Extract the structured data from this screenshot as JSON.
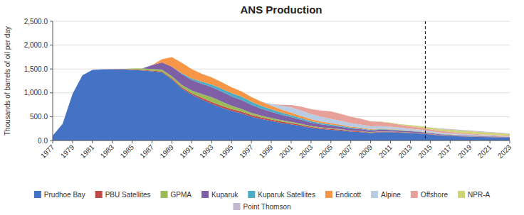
{
  "chart_data": {
    "type": "area",
    "stacked": true,
    "title": "ANS Production",
    "y_label": "Thousands of barrels of oil per day",
    "x": [
      1977,
      1978,
      1979,
      1980,
      1981,
      1982,
      1983,
      1984,
      1985,
      1986,
      1987,
      1988,
      1989,
      1990,
      1991,
      1992,
      1993,
      1994,
      1995,
      1996,
      1997,
      1998,
      1999,
      2000,
      2001,
      2002,
      2003,
      2004,
      2005,
      2006,
      2007,
      2008,
      2009,
      2010,
      2011,
      2012,
      2013,
      2014,
      2015,
      2016,
      2017,
      2018,
      2019,
      2020,
      2021,
      2022,
      2023
    ],
    "xlim": [
      1977,
      2023
    ],
    "xticks": [
      1977,
      1979,
      1981,
      1983,
      1985,
      1987,
      1989,
      1991,
      1993,
      1995,
      1997,
      1999,
      2001,
      2003,
      2005,
      2007,
      2009,
      2011,
      2013,
      2015,
      2017,
      2019,
      2021,
      2023
    ],
    "ylim": [
      0,
      2500
    ],
    "yticks": [
      {
        "value": 0,
        "label": "0.0"
      },
      {
        "value": 500,
        "label": "500.0"
      },
      {
        "value": 1000,
        "label": "1,000.0"
      },
      {
        "value": 1500,
        "label": "1,500.0"
      },
      {
        "value": 2000,
        "label": "2,000.0"
      },
      {
        "value": 2500,
        "label": "2,500.0"
      }
    ],
    "grid": true,
    "legend": "bottom",
    "reference_lines": [
      {
        "x": 2014.5,
        "line_style": "dashed"
      }
    ],
    "series": [
      {
        "name": "Prudhoe Bay",
        "color": "#4472C4",
        "values": [
          100,
          350,
          980,
          1370,
          1480,
          1490,
          1490,
          1490,
          1480,
          1470,
          1450,
          1430,
          1280,
          1090,
          960,
          860,
          770,
          690,
          620,
          570,
          500,
          450,
          410,
          370,
          340,
          305,
          265,
          240,
          225,
          210,
          185,
          175,
          155,
          175,
          175,
          165,
          155,
          145,
          125,
          105,
          95,
          85,
          80,
          75,
          70,
          65,
          62
        ]
      },
      {
        "name": "PBU Satellites",
        "color": "#BE4B48",
        "values": [
          0,
          0,
          0,
          0,
          0,
          0,
          5,
          8,
          10,
          12,
          15,
          18,
          22,
          26,
          30,
          35,
          38,
          40,
          40,
          38,
          36,
          34,
          30,
          28,
          26,
          24,
          22,
          20,
          18,
          17,
          15,
          14,
          13,
          12,
          11,
          10,
          9,
          8,
          8,
          7,
          7,
          6,
          6,
          5,
          5,
          5,
          4
        ]
      },
      {
        "name": "GPMA",
        "color": "#9BBB59",
        "values": [
          0,
          0,
          0,
          0,
          0,
          0,
          0,
          0,
          20,
          30,
          35,
          40,
          45,
          48,
          60,
          80,
          100,
          90,
          70,
          55,
          45,
          38,
          32,
          28,
          24,
          20,
          18,
          15,
          13,
          11,
          9,
          8,
          7,
          6,
          5,
          4,
          4,
          3,
          3,
          3,
          2,
          2,
          2,
          2,
          2,
          1,
          1
        ]
      },
      {
        "name": "Kuparuk",
        "color": "#7F5FA6",
        "values": [
          0,
          0,
          0,
          0,
          0,
          0,
          0,
          0,
          0,
          0,
          80,
          150,
          200,
          230,
          220,
          215,
          210,
          205,
          195,
          185,
          165,
          145,
          130,
          115,
          100,
          85,
          72,
          64,
          57,
          50,
          44,
          40,
          35,
          33,
          30,
          27,
          24,
          22,
          19,
          17,
          15,
          14,
          13,
          11,
          10,
          9,
          8
        ]
      },
      {
        "name": "Kuparuk Satellites",
        "color": "#4BACC6",
        "values": [
          0,
          0,
          0,
          0,
          0,
          0,
          0,
          0,
          0,
          0,
          0,
          0,
          0,
          15,
          30,
          45,
          55,
          62,
          68,
          70,
          65,
          58,
          52,
          46,
          40,
          35,
          30,
          26,
          23,
          20,
          17,
          15,
          13,
          11,
          10,
          9,
          8,
          7,
          6,
          5,
          5,
          4,
          4,
          3,
          3,
          3,
          2
        ]
      },
      {
        "name": "Endicott",
        "color": "#F79646",
        "values": [
          0,
          0,
          0,
          0,
          0,
          0,
          0,
          0,
          0,
          0,
          0,
          65,
          200,
          220,
          195,
          165,
          150,
          138,
          124,
          112,
          100,
          88,
          76,
          64,
          55,
          46,
          38,
          32,
          28,
          24,
          20,
          18,
          15,
          13,
          11,
          9,
          8,
          7,
          6,
          5,
          5,
          4,
          4,
          3,
          3,
          3,
          3
        ]
      },
      {
        "name": "Alpine",
        "color": "#B8CCE4",
        "values": [
          0,
          0,
          0,
          0,
          0,
          0,
          0,
          0,
          0,
          0,
          0,
          0,
          0,
          0,
          0,
          0,
          0,
          0,
          0,
          0,
          0,
          0,
          35,
          80,
          110,
          115,
          110,
          100,
          90,
          82,
          74,
          66,
          58,
          52,
          47,
          42,
          38,
          34,
          30,
          27,
          24,
          21,
          18,
          16,
          14,
          12,
          11
        ]
      },
      {
        "name": "Offshore",
        "color": "#E8A09A",
        "values": [
          0,
          0,
          0,
          0,
          0,
          0,
          0,
          0,
          0,
          0,
          0,
          0,
          0,
          0,
          0,
          0,
          0,
          0,
          0,
          0,
          0,
          0,
          0,
          15,
          50,
          80,
          105,
          130,
          155,
          145,
          135,
          120,
          105,
          90,
          75,
          60,
          52,
          45,
          38,
          33,
          28,
          24,
          20,
          17,
          15,
          13,
          11
        ]
      },
      {
        "name": "NPR-A",
        "color": "#CDD576",
        "values": [
          0,
          0,
          0,
          0,
          0,
          0,
          0,
          0,
          0,
          0,
          0,
          0,
          0,
          0,
          0,
          0,
          0,
          0,
          0,
          0,
          0,
          0,
          0,
          0,
          0,
          0,
          0,
          0,
          0,
          0,
          0,
          0,
          0,
          5,
          10,
          18,
          25,
          30,
          35,
          40,
          45,
          48,
          50,
          48,
          45,
          40,
          36
        ]
      },
      {
        "name": "Point Thomson",
        "color": "#C0B8D0",
        "values": [
          0,
          0,
          0,
          0,
          0,
          0,
          0,
          0,
          0,
          0,
          0,
          0,
          0,
          0,
          0,
          0,
          0,
          0,
          0,
          0,
          0,
          0,
          0,
          0,
          0,
          0,
          0,
          0,
          0,
          0,
          0,
          0,
          0,
          0,
          0,
          0,
          0,
          0,
          5,
          10,
          14,
          16,
          16,
          15,
          13,
          12,
          10
        ]
      }
    ]
  }
}
